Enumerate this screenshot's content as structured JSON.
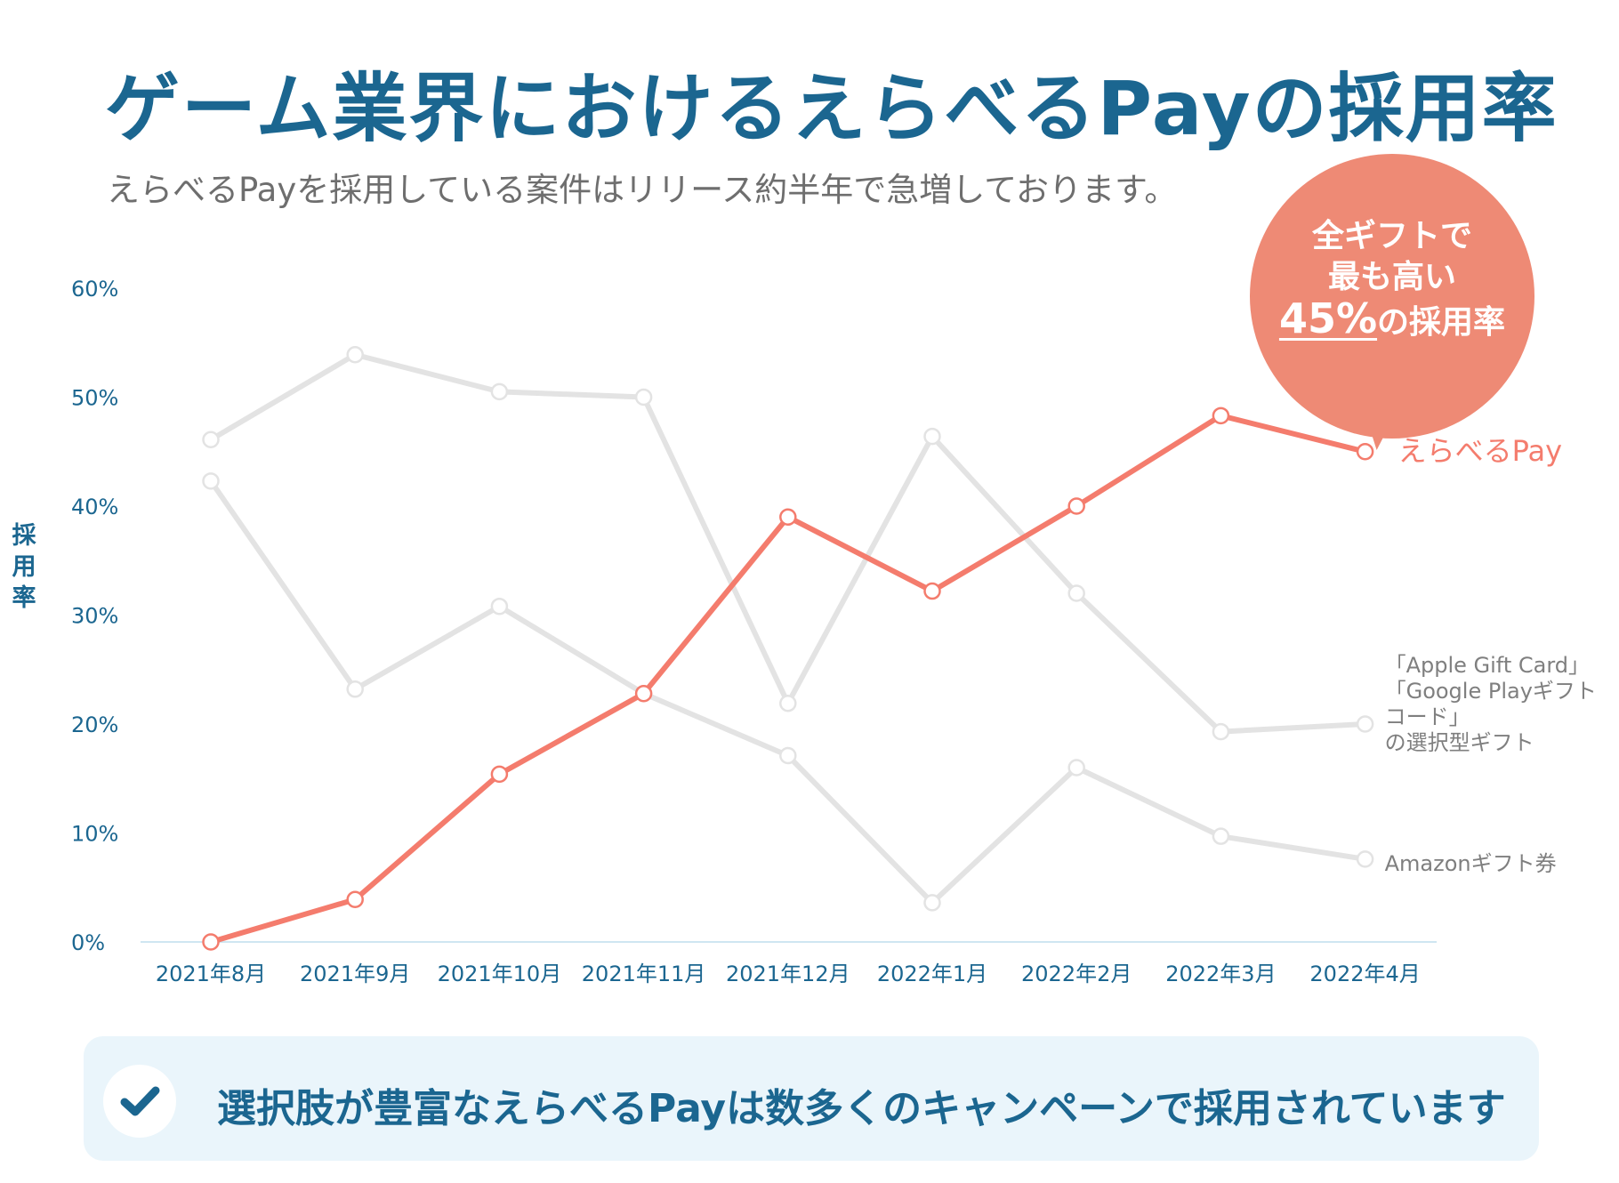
{
  "title": "ゲーム業界におけるえらべるPayの採用率",
  "subtitle": "えらべるPayを採用している案件はリリース約半年で急増しております。",
  "callout": {
    "line1": "全ギフトで",
    "line2": "最も高い",
    "highlight": "45%",
    "line3_rest": "の採用率"
  },
  "footer": {
    "text": "選択肢が豊富なえらべるPayは数多くのキャンペーンで採用されています",
    "icon": "check-icon"
  },
  "colors": {
    "title": "#1b6690",
    "highlight_series": "#f47c6d",
    "other_series": "#e3e3e3",
    "callout": "#ee8a75",
    "footer_bg": "#eaf5fb"
  },
  "chart_data": {
    "type": "line",
    "ylabel": "採用率",
    "xlabel": "",
    "ylim": [
      0,
      60
    ],
    "yticks": [
      "0%",
      "10%",
      "20%",
      "30%",
      "40%",
      "50%",
      "60%"
    ],
    "categories": [
      "2021年8月",
      "2021年9月",
      "2021年10月",
      "2021年11月",
      "2021年12月",
      "2022年1月",
      "2022年2月",
      "2022年3月",
      "2022年4月"
    ],
    "grid": false,
    "series": [
      {
        "name": "えらべるPay",
        "values": [
          0,
          3.9,
          15.4,
          22.8,
          39,
          32.2,
          40,
          48.3,
          45
        ],
        "highlight": true
      },
      {
        "name": "「Apple Gift Card」「Google Playギフトコード」の選択型ギフト",
        "label_lines": [
          "「Apple Gift Card」",
          "「Google Playギフト",
          "コード」",
          "の選択型ギフト"
        ],
        "values": [
          46.1,
          53.9,
          50.5,
          50,
          21.9,
          46.4,
          32,
          19.3,
          20
        ],
        "highlight": false
      },
      {
        "name": "Amazonギフト券",
        "values": [
          42.3,
          23.2,
          30.8,
          22.8,
          17.1,
          3.6,
          16,
          9.7,
          7.6
        ],
        "highlight": false
      }
    ]
  }
}
